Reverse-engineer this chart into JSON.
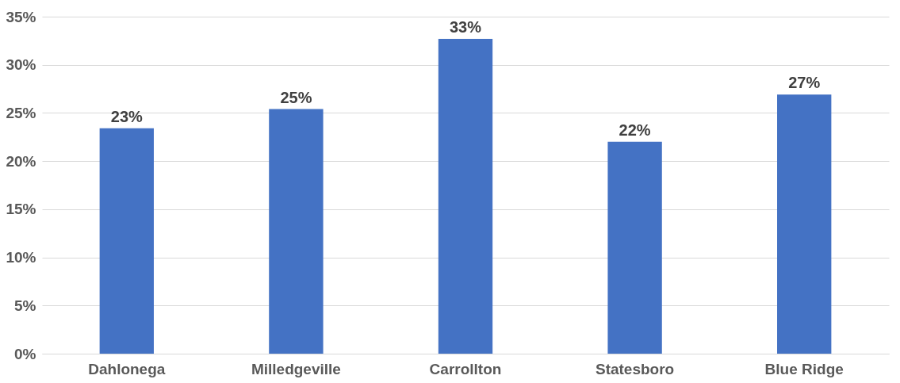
{
  "chart_data": {
    "type": "bar",
    "categories": [
      "Dahlonega",
      "Milledgeville",
      "Carrollton",
      "Statesboro",
      "Blue Ridge"
    ],
    "values": [
      23.4,
      25.4,
      32.7,
      22,
      26.9
    ],
    "value_labels": [
      "23%",
      "25%",
      "33%",
      "22%",
      "27%"
    ],
    "color": "#4472c4",
    "ylim": [
      0,
      35
    ],
    "yticks": [
      {
        "value": 0,
        "label": "0%"
      },
      {
        "value": 5,
        "label": "5%"
      },
      {
        "value": 10,
        "label": "10%"
      },
      {
        "value": 15,
        "label": "15%"
      },
      {
        "value": 20,
        "label": "20%"
      },
      {
        "value": 25,
        "label": "25%"
      },
      {
        "value": 30,
        "label": "30%"
      },
      {
        "value": 35,
        "label": "35%"
      }
    ],
    "grid": "y"
  }
}
